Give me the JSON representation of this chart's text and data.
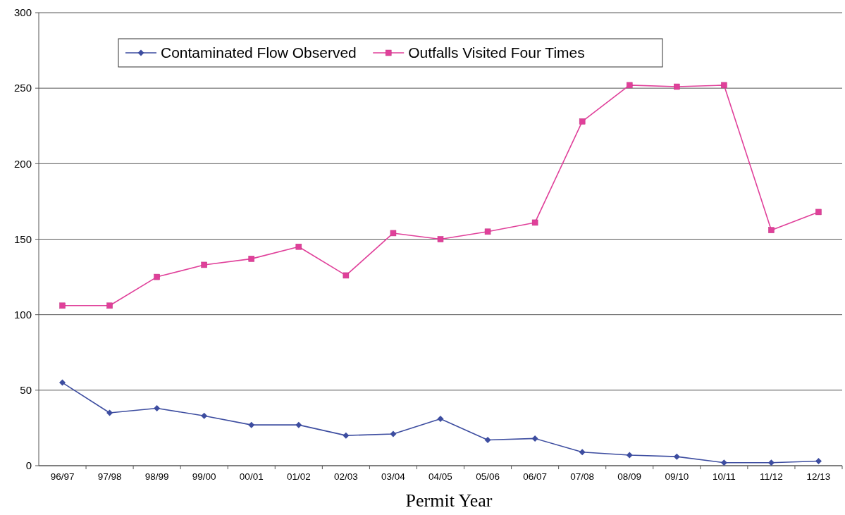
{
  "chart_data": {
    "type": "line",
    "xlabel": "Permit Year",
    "categories": [
      "96/97",
      "97/98",
      "98/99",
      "99/00",
      "00/01",
      "01/02",
      "02/03",
      "03/04",
      "04/05",
      "05/06",
      "06/07",
      "07/08",
      "08/09",
      "09/10",
      "10/11",
      "11/12",
      "12/13"
    ],
    "series": [
      {
        "name": "Contaminated Flow Observed",
        "color": "#3d4da0",
        "marker": "diamond",
        "values": [
          55,
          35,
          38,
          33,
          27,
          27,
          20,
          21,
          31,
          17,
          18,
          9,
          7,
          6,
          2,
          2,
          3
        ]
      },
      {
        "name": "Outfalls Visited Four Times",
        "color": "#e0409a",
        "marker": "square",
        "values": [
          106,
          106,
          125,
          133,
          137,
          145,
          126,
          154,
          150,
          155,
          161,
          228,
          252,
          251,
          252,
          156,
          168
        ]
      }
    ],
    "ylim": [
      0,
      300
    ],
    "yticks": [
      0,
      50,
      100,
      150,
      200,
      250,
      300
    ],
    "grid": "y",
    "legend": "top left",
    "line_style": "solid"
  }
}
